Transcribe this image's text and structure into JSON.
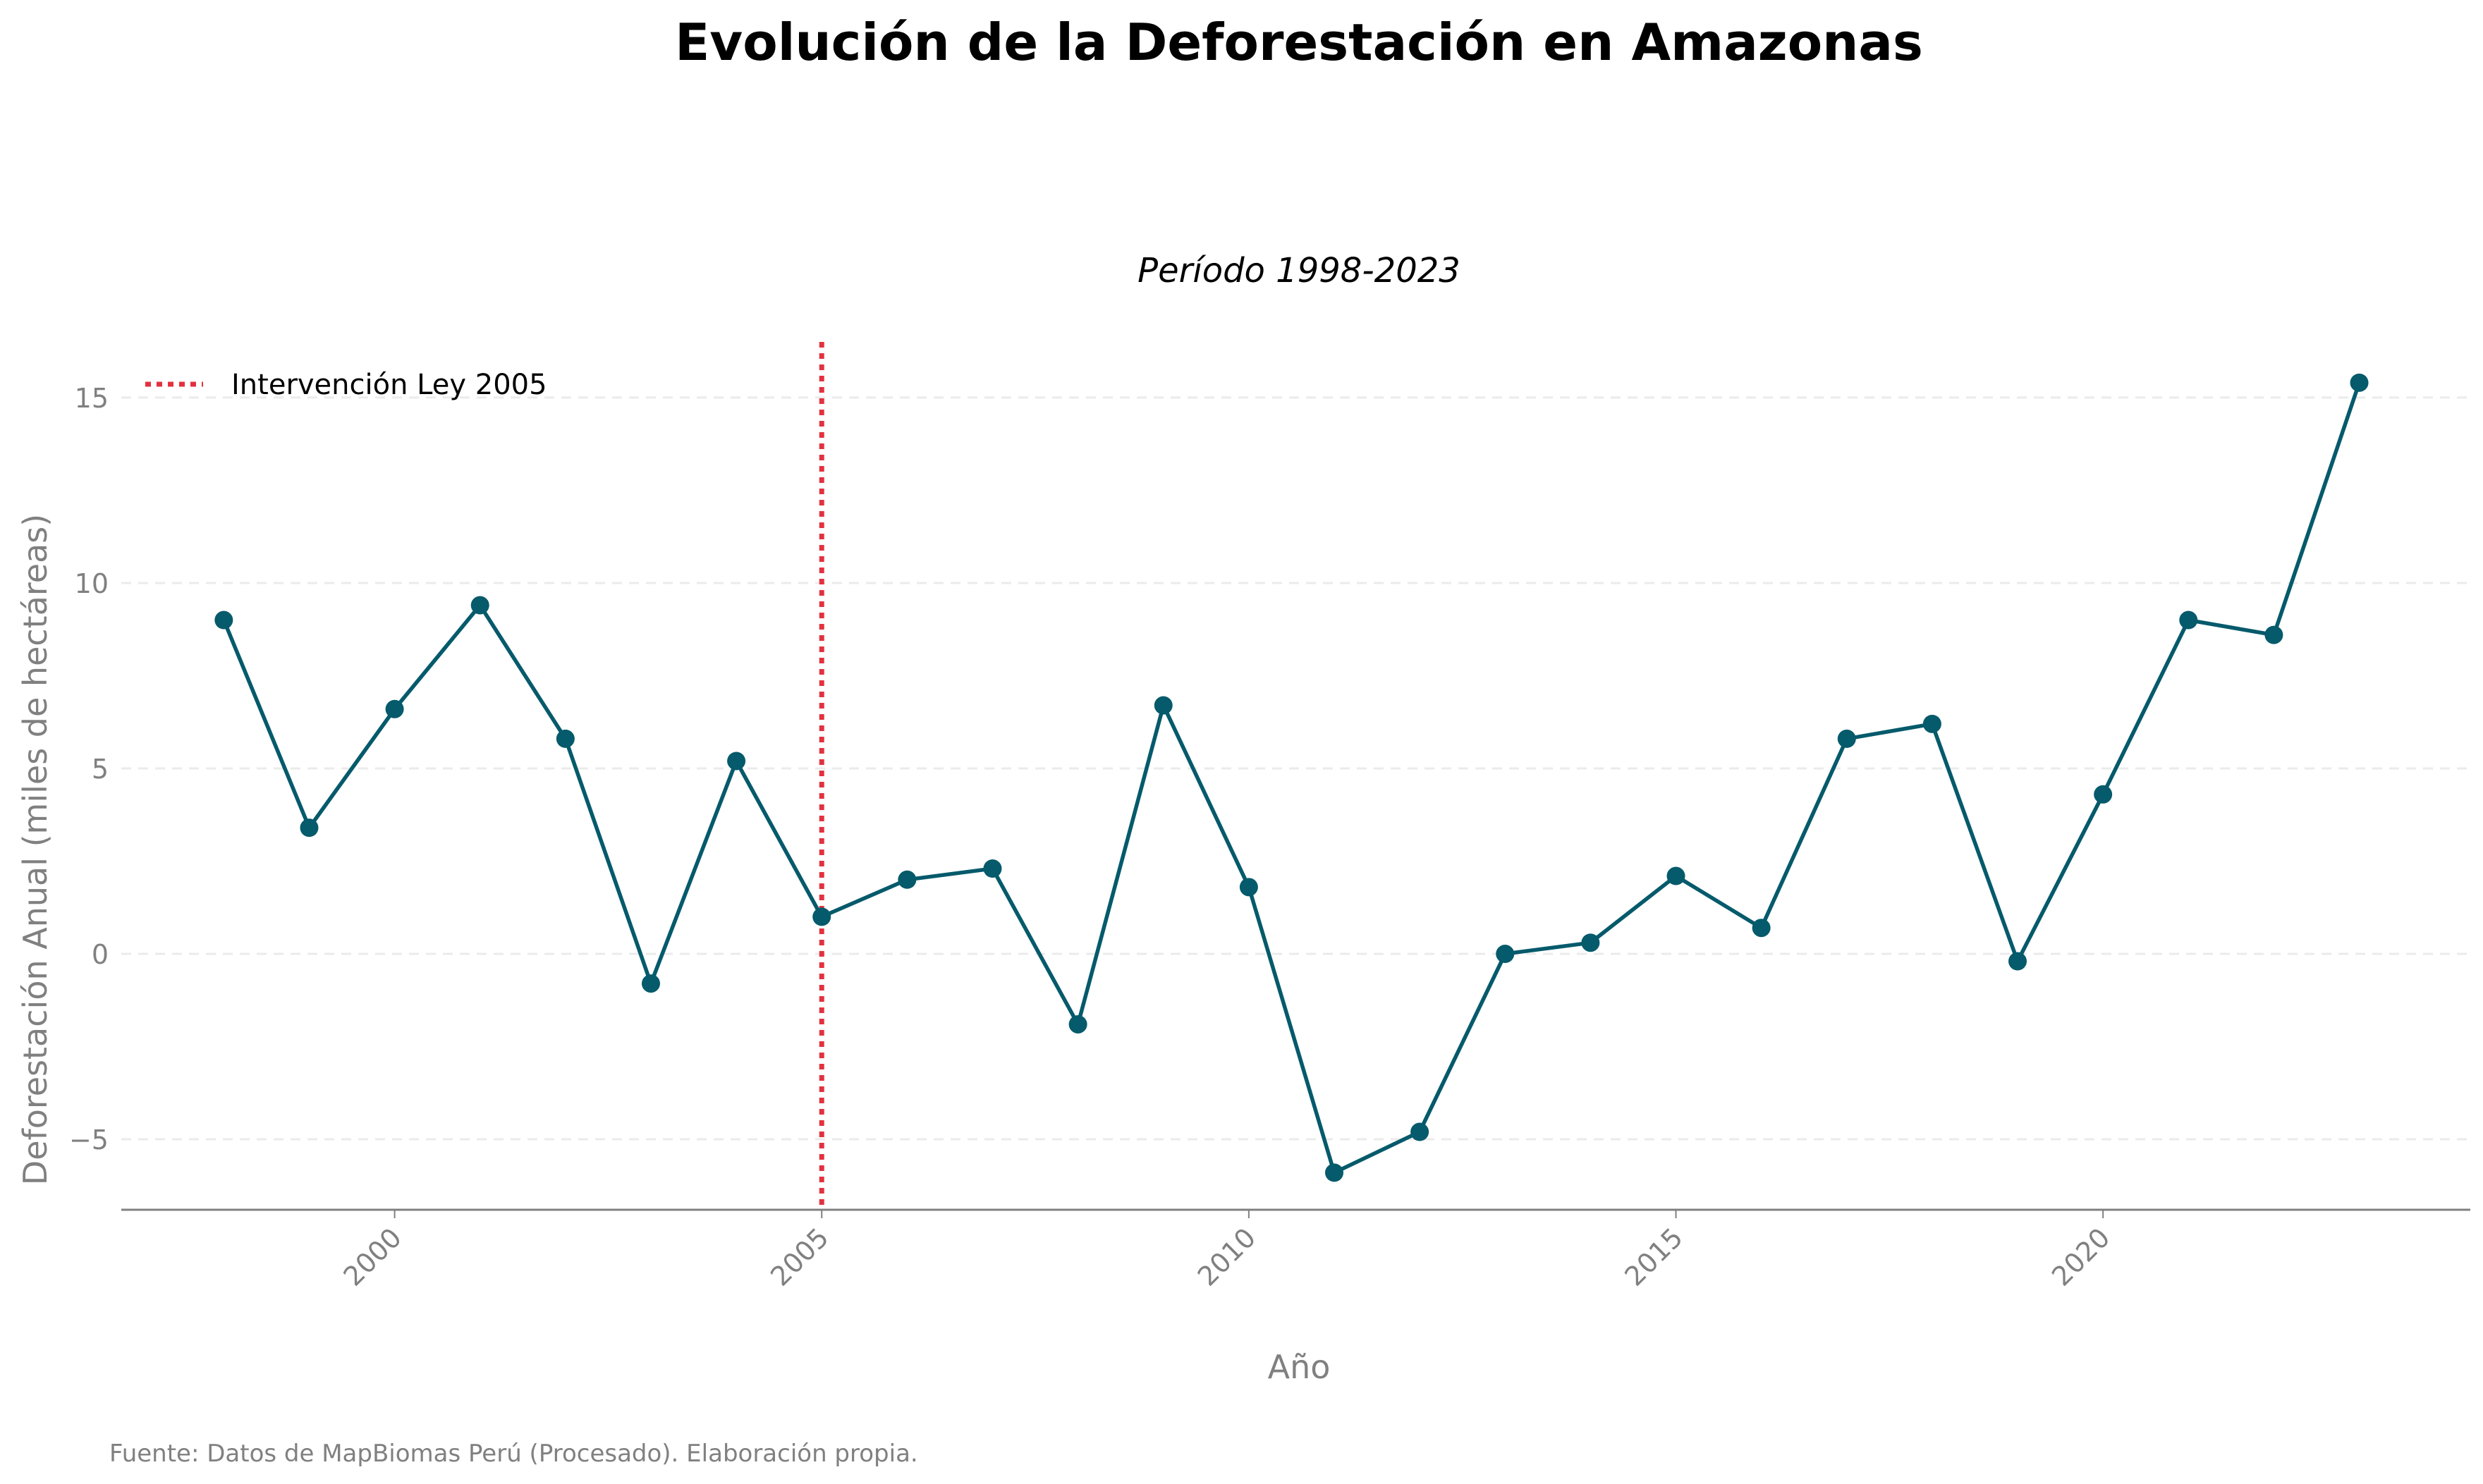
{
  "chart_data": {
    "type": "line",
    "title": "Evolución de la Deforestación en Amazonas",
    "subtitle": "Período 1998-2023",
    "xlabel": "Año",
    "ylabel": "Deforestación Anual (miles de hectáreas)",
    "source": "Fuente: Datos de MapBiomas Perú (Procesado). Elaboración propia.",
    "x": [
      1998,
      1999,
      2000,
      2001,
      2002,
      2003,
      2004,
      2005,
      2006,
      2007,
      2008,
      2009,
      2010,
      2011,
      2012,
      2013,
      2014,
      2015,
      2016,
      2017,
      2018,
      2019,
      2020,
      2021,
      2022,
      2023
    ],
    "series": [
      {
        "values": [
          9.0,
          3.4,
          6.6,
          9.4,
          5.8,
          -0.8,
          5.2,
          1.0,
          2.0,
          2.3,
          -1.9,
          6.7,
          1.8,
          -5.9,
          -4.8,
          0.0,
          0.3,
          2.1,
          0.7,
          5.8,
          6.2,
          -0.2,
          4.3,
          9.0,
          8.6,
          15.4
        ],
        "color": "#055a6b"
      }
    ],
    "xlim": [
      1996.8,
      2024.3
    ],
    "ylim": [
      -6.9,
      16.5
    ],
    "xticks": [
      2000,
      2005,
      2010,
      2015,
      2020
    ],
    "xtick_labels": [
      "2000",
      "2005",
      "2010",
      "2015",
      "2020"
    ],
    "yticks": [
      -5,
      0,
      5,
      10,
      15
    ],
    "ytick_labels": [
      "−5",
      "0",
      "5",
      "10",
      "15"
    ],
    "grid": "horizontal-dashed",
    "legend_placement": "top-left",
    "annotations": [
      {
        "type": "vline",
        "x": 2005,
        "label": "Intervención Ley 2005",
        "color": "#e3313f",
        "style": "dotted"
      }
    ]
  }
}
